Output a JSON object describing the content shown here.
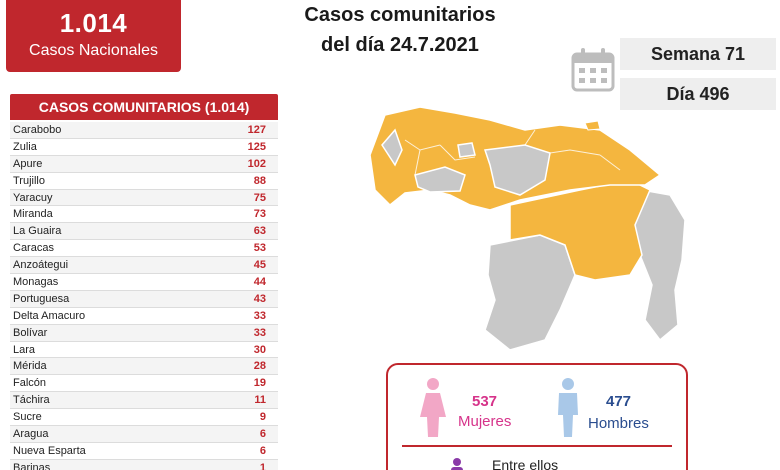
{
  "badge": {
    "number": "1.014",
    "label": "Casos Nacionales"
  },
  "headline": {
    "line1": "Casos comunitarios",
    "line2": "del día 24.7.2021"
  },
  "stats": {
    "week": "Semana 71",
    "day": "Día 496"
  },
  "table": {
    "title": "CASOS COMUNITARIOS (1.014)",
    "rows": [
      {
        "state": "Carabobo",
        "value": "127"
      },
      {
        "state": "Zulia",
        "value": "125"
      },
      {
        "state": "Apure",
        "value": "102"
      },
      {
        "state": "Trujillo",
        "value": "88"
      },
      {
        "state": "Yaracuy",
        "value": "75"
      },
      {
        "state": "Miranda",
        "value": "73"
      },
      {
        "state": "La Guaira",
        "value": "63"
      },
      {
        "state": "Caracas",
        "value": "53"
      },
      {
        "state": "Anzoátegui",
        "value": "45"
      },
      {
        "state": "Monagas",
        "value": "44"
      },
      {
        "state": "Portuguesa",
        "value": "43"
      },
      {
        "state": "Delta Amacuro",
        "value": "33"
      },
      {
        "state": "Bolívar",
        "value": "33"
      },
      {
        "state": "Lara",
        "value": "30"
      },
      {
        "state": "Mérida",
        "value": "28"
      },
      {
        "state": "Falcón",
        "value": "19"
      },
      {
        "state": "Táchira",
        "value": "11"
      },
      {
        "state": "Sucre",
        "value": "9"
      },
      {
        "state": "Aragua",
        "value": "6"
      },
      {
        "state": "Nueva Esparta",
        "value": "6"
      },
      {
        "state": "Barinas",
        "value": "1"
      }
    ]
  },
  "gender": {
    "female_count": "537",
    "female_label": "Mujeres",
    "male_count": "477",
    "male_label": "Hombres",
    "between_label": "Entre ellos"
  },
  "colors": {
    "accent_red": "#c0272d",
    "map_affected": "#f4b63f",
    "map_other": "#c8c8c8",
    "female": "#d6338a",
    "male": "#2a4d8f"
  },
  "icons": [
    "calendar-icon",
    "female-icon",
    "male-icon",
    "person-icon"
  ]
}
